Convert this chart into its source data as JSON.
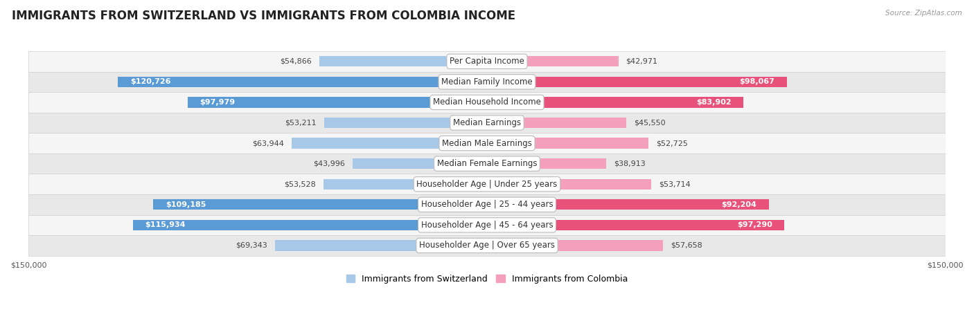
{
  "title": "IMMIGRANTS FROM SWITZERLAND VS IMMIGRANTS FROM COLOMBIA INCOME",
  "source": "Source: ZipAtlas.com",
  "categories": [
    "Per Capita Income",
    "Median Family Income",
    "Median Household Income",
    "Median Earnings",
    "Median Male Earnings",
    "Median Female Earnings",
    "Householder Age | Under 25 years",
    "Householder Age | 25 - 44 years",
    "Householder Age | 45 - 64 years",
    "Householder Age | Over 65 years"
  ],
  "switzerland_values": [
    54866,
    120726,
    97979,
    53211,
    63944,
    43996,
    53528,
    109185,
    115934,
    69343
  ],
  "colombia_values": [
    42971,
    98067,
    83902,
    45550,
    52725,
    38913,
    53714,
    92204,
    97290,
    57658
  ],
  "switzerland_color_light": "#a8c8e8",
  "switzerland_color_dark": "#5b9bd5",
  "colombia_color_light": "#f4a0bc",
  "colombia_color_dark": "#e8517a",
  "switzerland_label": "Immigrants from Switzerland",
  "colombia_label": "Immigrants from Colombia",
  "row_bg_light": "#f5f5f5",
  "row_bg_dark": "#e8e8e8",
  "max_value": 150000,
  "inside_threshold": 70000,
  "title_fontsize": 12,
  "cat_fontsize": 8.5,
  "value_fontsize": 8,
  "legend_fontsize": 9,
  "bar_height": 0.52
}
